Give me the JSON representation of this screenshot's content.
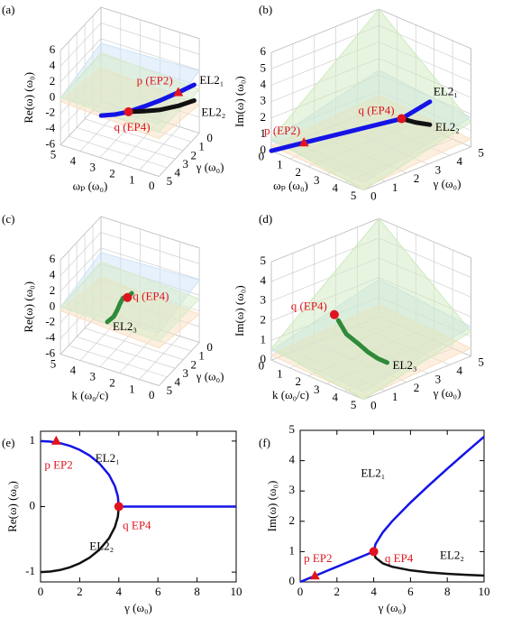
{
  "chart_data": [
    {
      "type": "line3d",
      "panel": "(a)",
      "xlabel": "ωₚ (ω₀)",
      "ylabel": "γ (ω₀)",
      "zlabel": "Re(ω) (ω₀)",
      "xlim": [
        0,
        5
      ],
      "ylim": [
        0,
        5
      ],
      "zlim": [
        -6,
        6
      ],
      "xticks": [
        0,
        1,
        2,
        3,
        4,
        5
      ],
      "yticks": [
        0,
        1,
        2,
        3,
        4,
        5
      ],
      "zticks": [
        -6,
        -4,
        -2,
        0,
        2,
        4,
        6
      ],
      "series": [
        {
          "name": "EL2₁",
          "color": "#1414e6",
          "x": [
            3.1,
            2.5,
            2,
            1.5,
            1,
            0.5,
            0.1
          ],
          "y": [
            4.6,
            4.3,
            3.9,
            3.2,
            2.4,
            1.4,
            0.4
          ],
          "z": [
            -1.2,
            -0.9,
            -0.6,
            -0.3,
            0,
            0.3,
            0.5
          ]
        },
        {
          "name": "EL2₂",
          "color": "#111111",
          "x": [
            2,
            1.5,
            1,
            0.5,
            0.1
          ],
          "y": [
            3.9,
            3.2,
            2.4,
            1.4,
            0.4
          ],
          "z": [
            -0.6,
            -0.9,
            -1.2,
            -1.4,
            -1.5
          ]
        }
      ],
      "markers": [
        {
          "shape": "triangle",
          "label": "p (EP2)",
          "x": 0.5,
          "y": 1.4,
          "z": 0.3
        },
        {
          "shape": "circle",
          "label": "q (EP4)",
          "x": 2,
          "y": 3.9,
          "z": -0.6
        }
      ]
    },
    {
      "type": "line3d",
      "panel": "(b)",
      "xlabel": "ωₚ (ω₀)",
      "ylabel": "γ (ω₀)",
      "zlabel": "Im(ω) (ω₀)",
      "xlim": [
        0,
        5
      ],
      "ylim": [
        0,
        5
      ],
      "zlim": [
        0,
        6
      ],
      "xticks": [
        0,
        1,
        2,
        3,
        4,
        5
      ],
      "yticks": [
        0,
        1,
        2,
        3,
        4,
        5
      ],
      "zticks": [
        0,
        1,
        2,
        3,
        4,
        5,
        6
      ],
      "series": [
        {
          "name": "EL2₁",
          "color": "#1414e6",
          "x": [
            0,
            0.6,
            1.2,
            1.8,
            2.4,
            3
          ],
          "y": [
            0,
            1,
            2,
            3,
            4,
            4.8
          ],
          "z": [
            0,
            0.25,
            0.5,
            0.75,
            1,
            1.9
          ]
        },
        {
          "name": "EL2₂",
          "color": "#111111",
          "x": [
            2.4,
            2.7,
            3
          ],
          "y": [
            4,
            4.4,
            4.8
          ],
          "z": [
            1,
            0.7,
            0.5
          ]
        }
      ],
      "markers": [
        {
          "shape": "triangle",
          "label": "p (EP2)",
          "x": 0.6,
          "y": 1,
          "z": 0.25
        },
        {
          "shape": "circle",
          "label": "q (EP4)",
          "x": 2.4,
          "y": 4,
          "z": 1
        }
      ]
    },
    {
      "type": "line3d",
      "panel": "(c)",
      "xlabel": "k (ω₀/c)",
      "ylabel": "γ (ω₀)",
      "zlabel": "Re(ω) (ω₀)",
      "xlim": [
        0,
        5
      ],
      "ylim": [
        0,
        5
      ],
      "zlim": [
        -6,
        6
      ],
      "xticks": [
        0,
        1,
        2,
        3,
        4,
        5
      ],
      "yticks": [
        0,
        1,
        2,
        3,
        4,
        5
      ],
      "zticks": [
        -6,
        -4,
        -2,
        0,
        2,
        4,
        6
      ],
      "series": [
        {
          "name": "EL2₃",
          "color": "#2f8a3a",
          "x": [
            2,
            2.3,
            2.6,
            2.8,
            2.9,
            3,
            3.2
          ],
          "y": [
            3.5,
            3.3,
            3.1,
            3,
            3.1,
            3.3,
            3.6
          ],
          "z": [
            2.5,
            1.5,
            1,
            0,
            -0.8,
            -1.5,
            -2
          ]
        }
      ],
      "markers": [
        {
          "shape": "circle",
          "label": "q (EP4)",
          "x": 2.3,
          "y": 3.3,
          "z": 1.5
        }
      ]
    },
    {
      "type": "line3d",
      "panel": "(d)",
      "xlabel": "k (ω₀/c)",
      "ylabel": "γ (ω₀)",
      "zlabel": "Im(ω) (ω₀)",
      "xlim": [
        0,
        5
      ],
      "ylim": [
        0,
        5
      ],
      "zlim": [
        0,
        5
      ],
      "xticks": [
        0,
        1,
        2,
        3,
        4,
        5
      ],
      "yticks": [
        0,
        1,
        2,
        3,
        4,
        5
      ],
      "zticks": [
        0,
        1,
        2,
        3,
        4,
        5
      ],
      "series": [
        {
          "name": "EL2₃",
          "color": "#2f8a3a",
          "x": [
            2,
            2.2,
            2.5,
            2.8,
            3.2,
            3.6
          ],
          "y": [
            1.4,
            1.6,
            1.9,
            2.1,
            2.2,
            2.3
          ],
          "z": [
            2.2,
            1.5,
            1,
            0.6,
            0.4,
            0.3
          ]
        }
      ],
      "markers": [
        {
          "shape": "circle",
          "label": "q (EP4)",
          "x": 1.9,
          "y": 1.3,
          "z": 2.5
        }
      ]
    },
    {
      "type": "line",
      "panel": "(e)",
      "xlabel": "γ (ω₀)",
      "ylabel": "Re(ω) (ω₀)",
      "xlim": [
        0,
        10
      ],
      "ylim": [
        -1.15,
        1.15
      ],
      "xticks": [
        0,
        2,
        4,
        6,
        8,
        10
      ],
      "yticks": [
        -1,
        0,
        1
      ],
      "x": [
        0,
        0.5,
        1,
        1.5,
        2,
        2.5,
        3,
        3.5,
        3.8,
        3.95,
        4,
        4.1,
        4.5,
        5,
        6,
        7,
        8,
        9,
        10
      ],
      "series": [
        {
          "name": "EL2₁",
          "color": "#1414e6",
          "values": [
            1,
            0.992,
            0.968,
            0.927,
            0.866,
            0.781,
            0.661,
            0.484,
            0.312,
            0.158,
            0,
            0,
            0,
            0,
            0,
            0,
            0,
            0,
            0
          ]
        },
        {
          "name": "EL2₂",
          "color": "#111111",
          "values": [
            -1,
            -0.992,
            -0.968,
            -0.927,
            -0.866,
            -0.781,
            -0.661,
            -0.484,
            -0.312,
            -0.158,
            0,
            null,
            null,
            null,
            null,
            null,
            null,
            null,
            null
          ]
        }
      ],
      "markers": [
        {
          "shape": "triangle",
          "label": "p EP2",
          "x": 0.8,
          "y": 1
        },
        {
          "shape": "circle",
          "label": "q EP4",
          "x": 4,
          "y": 0
        }
      ]
    },
    {
      "type": "line",
      "panel": "(f)",
      "xlabel": "γ (ω₀)",
      "ylabel": "Im(ω) (ω₀)",
      "xlim": [
        0,
        10
      ],
      "ylim": [
        0,
        5
      ],
      "xticks": [
        0,
        2,
        4,
        6,
        8,
        10
      ],
      "yticks": [
        0,
        1,
        2,
        3,
        4,
        5
      ],
      "x": [
        0,
        0.5,
        1,
        1.5,
        2,
        2.5,
        3,
        3.5,
        3.8,
        3.95,
        4,
        4.1,
        4.5,
        5,
        6,
        7,
        8,
        9,
        10
      ],
      "series": [
        {
          "name": "EL2₁",
          "color": "#1414e6",
          "values": [
            0,
            0.125,
            0.25,
            0.375,
            0.5,
            0.625,
            0.75,
            0.875,
            0.95,
            0.9875,
            1,
            1.25,
            1.64,
            2,
            2.618,
            3.186,
            3.732,
            4.266,
            4.791
          ]
        },
        {
          "name": "EL2₂",
          "color": "#111111",
          "values": [
            null,
            null,
            null,
            null,
            null,
            null,
            null,
            null,
            null,
            null,
            1,
            0.8,
            0.61,
            0.5,
            0.382,
            0.314,
            0.268,
            0.234,
            0.209
          ]
        }
      ],
      "markers": [
        {
          "shape": "triangle",
          "label": "p EP2",
          "x": 0.8,
          "y": 0.2
        },
        {
          "shape": "circle",
          "label": "q EP4",
          "x": 4,
          "y": 1
        }
      ]
    }
  ]
}
